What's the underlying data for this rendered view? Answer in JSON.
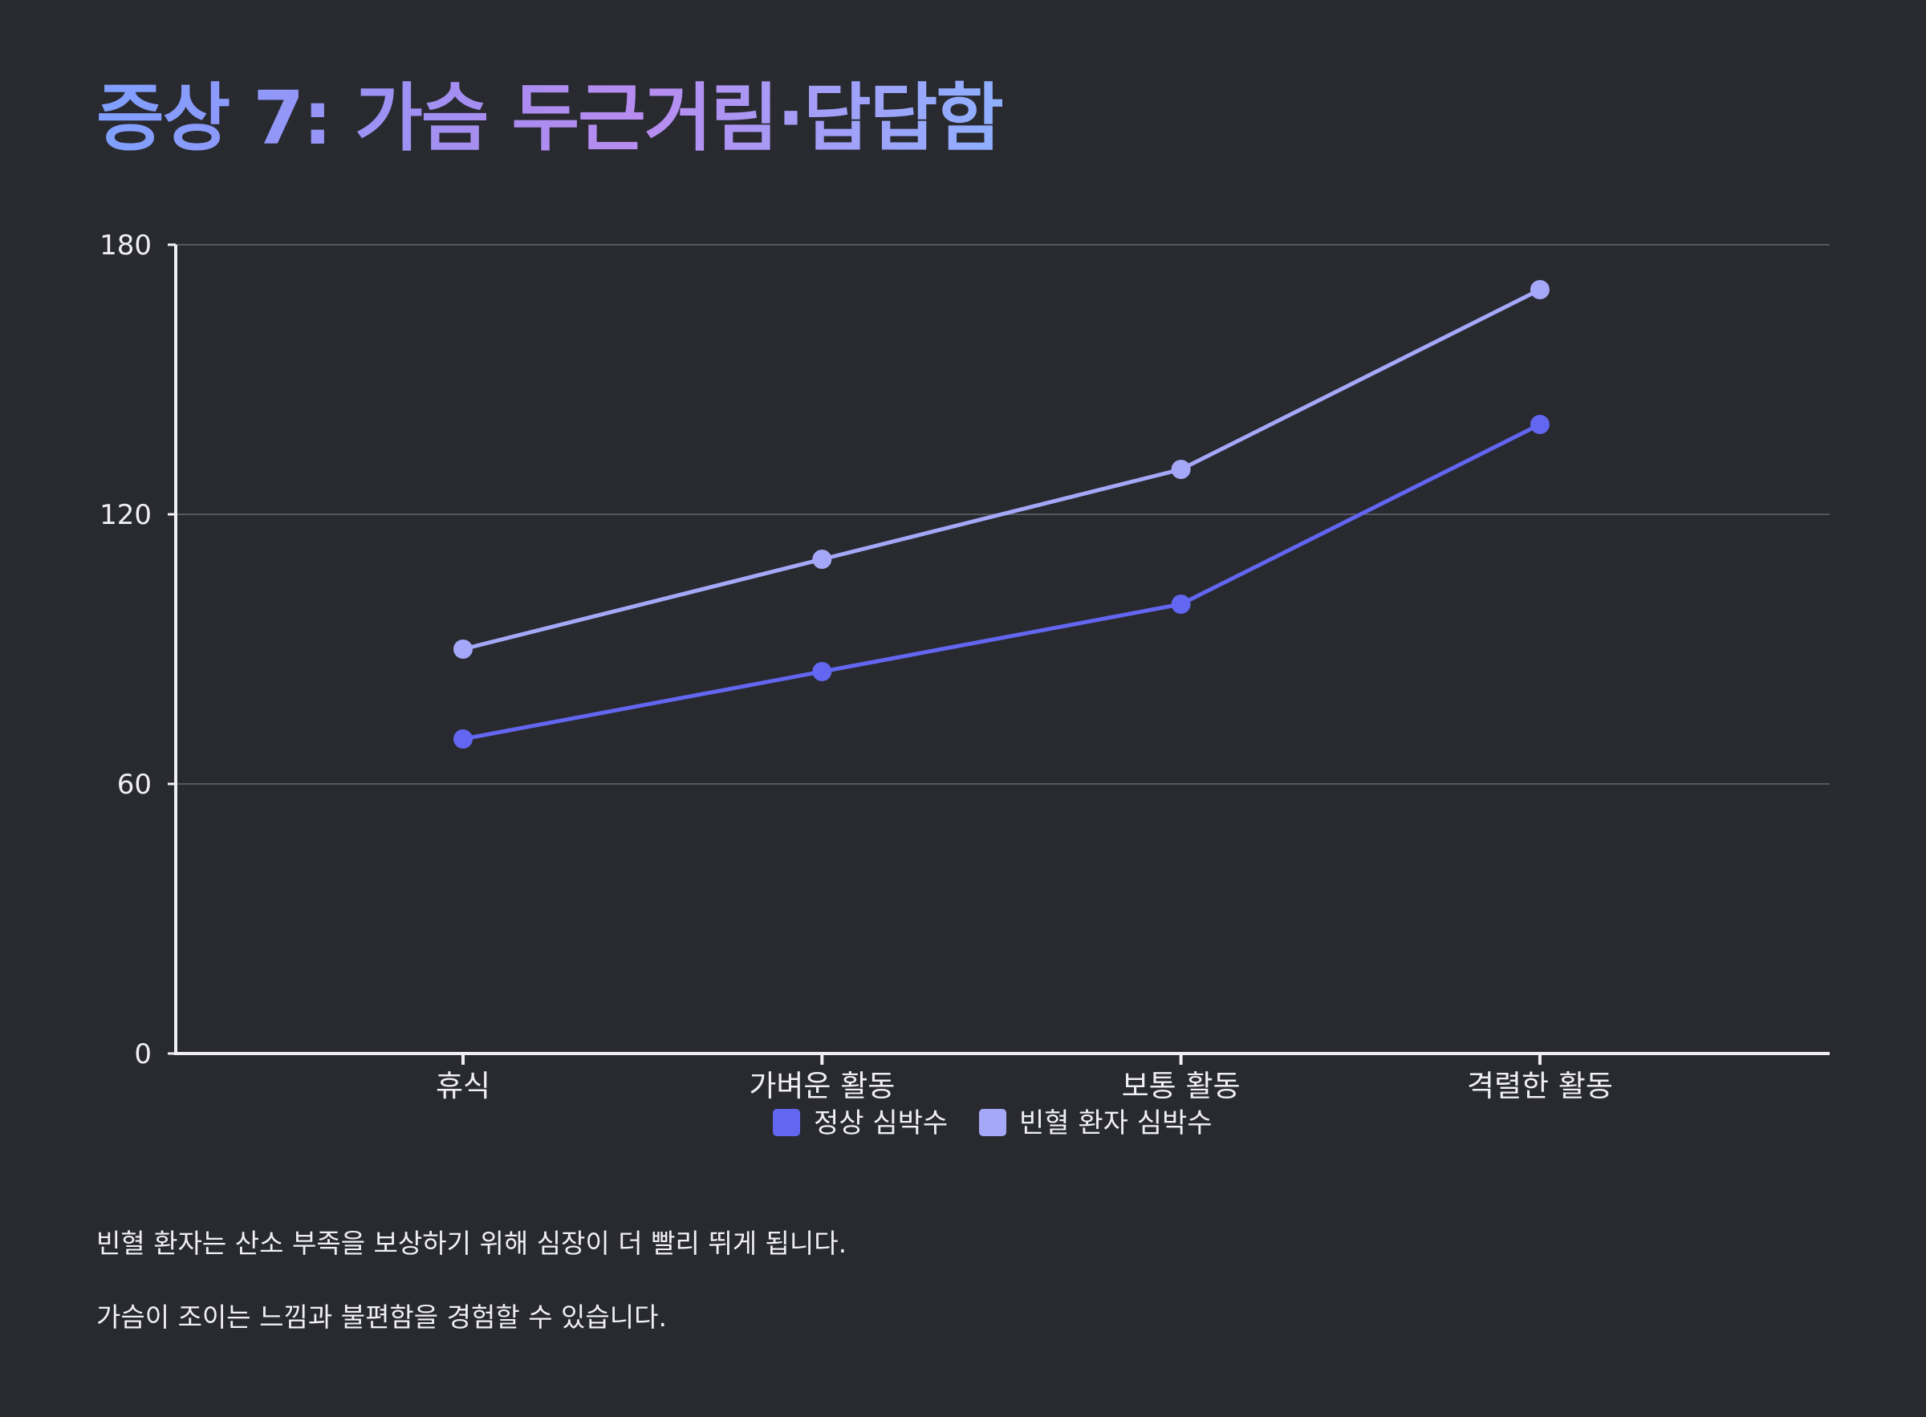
{
  "title": "증상 7: 가슴 두근거림·답답함",
  "descriptions": [
    "빈혈 환자는 산소 부족을 보상하기 위해 심장이 더 빨리 뛰게 됩니다.",
    "가슴이 조이는 느낌과 불편함을 경험할 수 있습니다."
  ],
  "colors": {
    "background": "#282a30",
    "axis": "#f0f0f4",
    "grid": "#55575e",
    "normal": "#6366f1",
    "anemia": "#a5a8f8",
    "title_gradient": [
      "#7fa0ff",
      "#b88cf0"
    ]
  },
  "chart_data": {
    "type": "line",
    "categories": [
      "휴식",
      "가벼운 활동",
      "보통 활동",
      "격렬한 활동"
    ],
    "series": [
      {
        "name": "정상 심박수",
        "values": [
          70,
          85,
          100,
          140
        ],
        "color": "#6366f1"
      },
      {
        "name": "빈혈 환자 심박수",
        "values": [
          90,
          110,
          130,
          170
        ],
        "color": "#a5a8f8"
      }
    ],
    "ylim": [
      0,
      180
    ],
    "yticks": [
      0,
      60,
      120,
      180
    ],
    "grid": true,
    "legend_position": "bottom-center",
    "xlabel": "",
    "ylabel": ""
  }
}
